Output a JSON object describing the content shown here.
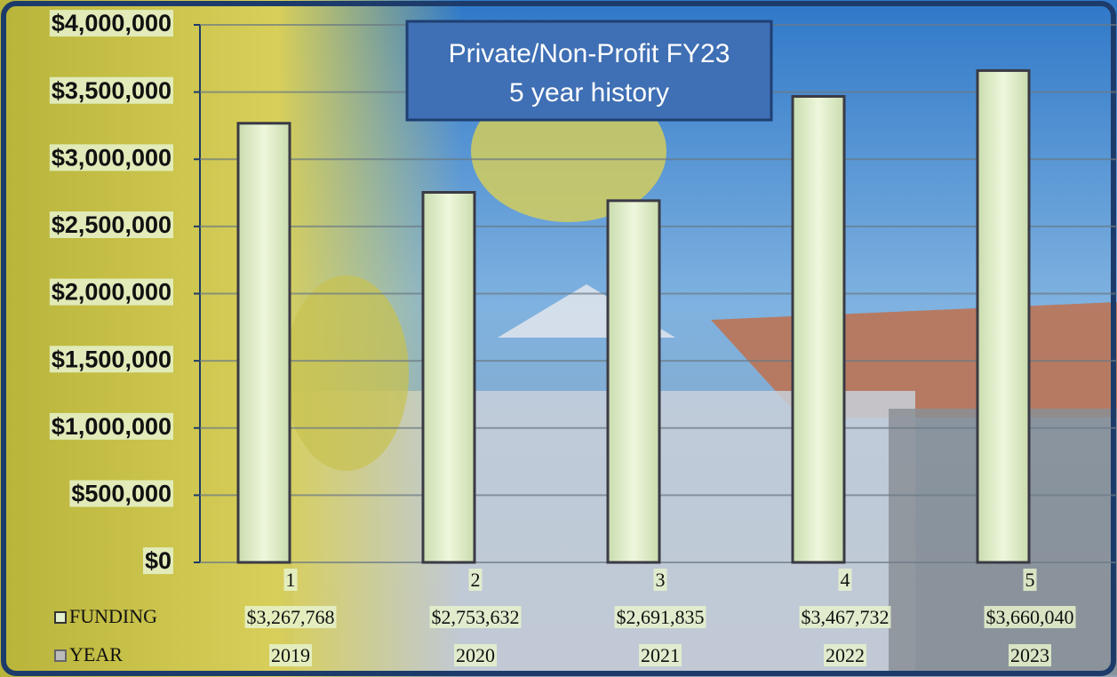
{
  "chart_data": {
    "type": "bar",
    "title": "Private/Non-Profit FY23",
    "subtitle": "5 year history",
    "categories": [
      "1",
      "2",
      "3",
      "4",
      "5"
    ],
    "values": [
      3267768,
      2753632,
      2691835,
      3467732,
      3660040
    ],
    "value_labels": [
      "$3,267,768",
      "$2,753,632",
      "$2,691,835",
      "$3,467,732",
      "$3,660,040"
    ],
    "series_name": "FUNDING",
    "color": "#e3f0cc",
    "ylim": [
      0,
      4000000
    ],
    "yticks": [
      {
        "value": 0,
        "label": "$0"
      },
      {
        "value": 500000,
        "label": "$500,000"
      },
      {
        "value": 1000000,
        "label": "$1,000,000"
      },
      {
        "value": 1500000,
        "label": "$1,500,000"
      },
      {
        "value": 2000000,
        "label": "$2,000,000"
      },
      {
        "value": 2500000,
        "label": "$2,500,000"
      },
      {
        "value": 3000000,
        "label": "$3,000,000"
      },
      {
        "value": 3500000,
        "label": "$3,500,000"
      },
      {
        "value": 4000000,
        "label": "$4,000,000"
      }
    ],
    "grid": true,
    "year_row": {
      "name": "YEAR",
      "values": [
        2019,
        2020,
        2021,
        2022,
        2023
      ]
    }
  }
}
